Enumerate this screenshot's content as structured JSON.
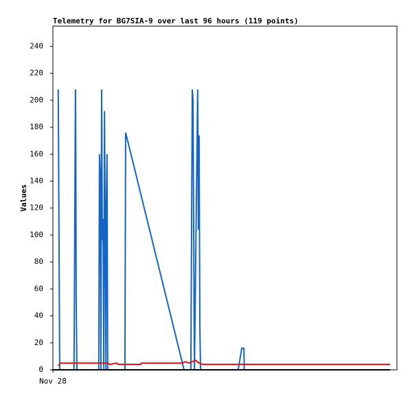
{
  "chart_data": {
    "type": "line",
    "title": "Telemetry for BG7SIA-9 over last 96 hours (119 points)",
    "y_label": "Values",
    "xlim": [
      0,
      96
    ],
    "xticks": [
      {
        "value": 0,
        "label": "Nov 28"
      }
    ],
    "ylim": [
      0,
      255
    ],
    "yticks": [
      0,
      20,
      40,
      60,
      80,
      100,
      120,
      140,
      160,
      180,
      200,
      220,
      240
    ],
    "series": [
      {
        "color": "#1565c8",
        "x": [
          1.5,
          1.7,
          1.9,
          5.9,
          6.1,
          6.3,
          6.4,
          6.5,
          6.7,
          12.8,
          13.0,
          13.2,
          13.4,
          13.6,
          13.8,
          14.0,
          14.2,
          14.4,
          14.6,
          14.8,
          14.9,
          15.1,
          15.3,
          20.1,
          20.3,
          36.6,
          38.5,
          38.7,
          38.9,
          39.1,
          39.3,
          39.5,
          40.4,
          40.6,
          40.8,
          41.0,
          41.2,
          51.7,
          52.7,
          53.3,
          53.4
        ],
        "values": [
          208,
          104,
          0,
          0,
          104,
          208,
          156,
          52,
          0,
          0,
          160,
          144,
          0,
          208,
          96,
          112,
          0,
          192,
          96,
          0,
          120,
          160,
          0,
          0,
          176,
          0,
          0,
          104,
          208,
          200,
          96,
          0,
          208,
          104,
          174,
          34,
          0,
          0,
          16,
          16,
          0
        ]
      },
      {
        "color": "#dd1111",
        "x": [
          1.5,
          2.1,
          13.0,
          15.3,
          15.9,
          17.8,
          18.2,
          24.5,
          24.7,
          36.0,
          37.0,
          37.9,
          39.8,
          40.8,
          41.8,
          94.1
        ],
        "values": [
          3,
          5,
          5,
          5,
          4,
          5,
          4,
          4,
          5,
          5,
          6,
          5,
          7,
          5,
          4,
          4
        ]
      },
      {
        "color": "#000000",
        "x": [
          0,
          94.1
        ],
        "values": [
          0,
          0
        ]
      }
    ]
  }
}
